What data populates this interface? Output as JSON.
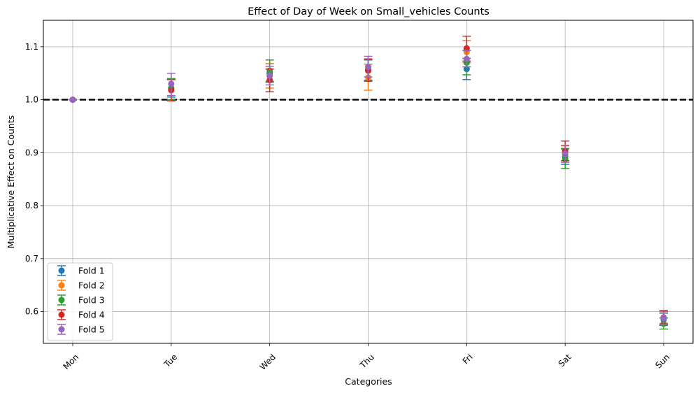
{
  "chart_data": {
    "type": "scatter",
    "title": "Effect of Day of Week on Small_vehicles Counts",
    "xlabel": "Categories",
    "ylabel": "Multiplicative Effect on Counts",
    "categories": [
      "Mon",
      "Tue",
      "Wed",
      "Thu",
      "Fri",
      "Sat",
      "Sun"
    ],
    "ylim": [
      0.54,
      1.15
    ],
    "yticks": [
      0.6,
      0.7,
      0.8,
      0.9,
      1.0,
      1.1
    ],
    "ytick_labels": [
      "0.6",
      "0.7",
      "0.8",
      "0.9",
      "1.0",
      "1.1"
    ],
    "reference_line": 1.0,
    "grid": true,
    "legend_position": "lower-left",
    "series": [
      {
        "name": "Fold 1",
        "color": "#1f77b4",
        "values": [
          1.0,
          1.022,
          1.05,
          1.055,
          1.058,
          0.893,
          0.585
        ],
        "err_low": [
          1.0,
          1.005,
          1.033,
          1.037,
          1.038,
          0.878,
          0.574
        ],
        "err_high": [
          1.0,
          1.038,
          1.068,
          1.075,
          1.078,
          0.907,
          0.597
        ]
      },
      {
        "name": "Fold 2",
        "color": "#ff7f0e",
        "values": [
          1.0,
          1.018,
          1.045,
          1.042,
          1.09,
          0.897,
          0.588
        ],
        "err_low": [
          1.0,
          0.998,
          1.022,
          1.018,
          1.07,
          0.882,
          0.576
        ],
        "err_high": [
          1.0,
          1.038,
          1.068,
          1.067,
          1.112,
          0.913,
          0.6
        ]
      },
      {
        "name": "Fold 3",
        "color": "#2ca02c",
        "values": [
          1.0,
          1.022,
          1.055,
          1.057,
          1.07,
          0.888,
          0.577
        ],
        "err_low": [
          1.0,
          1.0,
          1.035,
          1.035,
          1.047,
          0.87,
          0.567
        ],
        "err_high": [
          1.0,
          1.04,
          1.075,
          1.077,
          1.093,
          0.908,
          0.588
        ]
      },
      {
        "name": "Fold 4",
        "color": "#d62728",
        "values": [
          1.0,
          1.018,
          1.037,
          1.055,
          1.097,
          0.903,
          0.589
        ],
        "err_low": [
          1.0,
          0.998,
          1.015,
          1.035,
          1.073,
          0.885,
          0.577
        ],
        "err_high": [
          1.0,
          1.038,
          1.058,
          1.077,
          1.12,
          0.922,
          0.602
        ]
      },
      {
        "name": "Fold 5",
        "color": "#9467bd",
        "values": [
          1.0,
          1.03,
          1.045,
          1.062,
          1.077,
          0.898,
          0.588
        ],
        "err_low": [
          1.0,
          1.008,
          1.028,
          1.043,
          1.062,
          0.882,
          0.576
        ],
        "err_high": [
          1.0,
          1.05,
          1.063,
          1.082,
          1.093,
          0.914,
          0.6
        ]
      }
    ]
  }
}
